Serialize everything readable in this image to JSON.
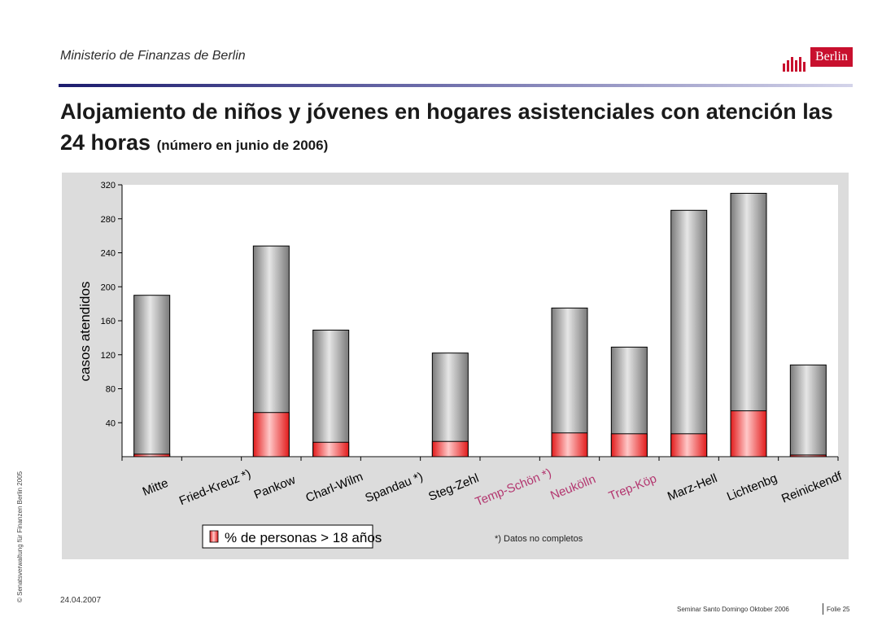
{
  "header": {
    "ministry": "Ministerio de Finanzas de Berlin",
    "logo_text": "Berlin",
    "title_main": "Alojamiento de niños y jóvenes en hogares asistenciales con atención las 24 horas",
    "title_sub": "(número en junio de 2006)"
  },
  "colors": {
    "bar_gray": "#a0a0a0",
    "bar_red": "#ff5c5c",
    "panel": "#dcdcdc",
    "logo_red": "#c8102e",
    "highlight_label": "#b3366f"
  },
  "chart_data": {
    "type": "bar",
    "stacked": true,
    "ylabel": "casos atendidos",
    "ylim": [
      0,
      320
    ],
    "yticks": [
      40,
      80,
      120,
      160,
      200,
      240,
      280,
      320
    ],
    "categories": [
      "Mitte",
      "Fried-Kreuz *)",
      "Pankow",
      "Charl-Wilm",
      "Spandau *)",
      "Steg-Zehl",
      "Temp-Schön *)",
      "Neukölln",
      "Trep-Köp",
      "Marz-Hell",
      "Lichtenbg",
      "Reinickendf"
    ],
    "highlighted_categories": [
      "Temp-Schön *)",
      "Neukölln",
      "Trep-Köp"
    ],
    "totals": [
      190,
      null,
      248,
      149,
      null,
      122,
      null,
      175,
      129,
      290,
      310,
      108
    ],
    "series": [
      {
        "name": "% de personas > 18 años",
        "values": [
          3,
          null,
          52,
          17,
          null,
          18,
          null,
          28,
          27,
          27,
          54,
          2
        ]
      }
    ],
    "legend": "bottom-left",
    "footnote": "*)  Datos no completos"
  },
  "footer": {
    "credit": "© Senatsverwaltung für Finanzen Berlin 2005",
    "date": "24.04.2007",
    "seminar": "Seminar Santo Domingo Oktober 2006",
    "folie": "Folie 25"
  }
}
